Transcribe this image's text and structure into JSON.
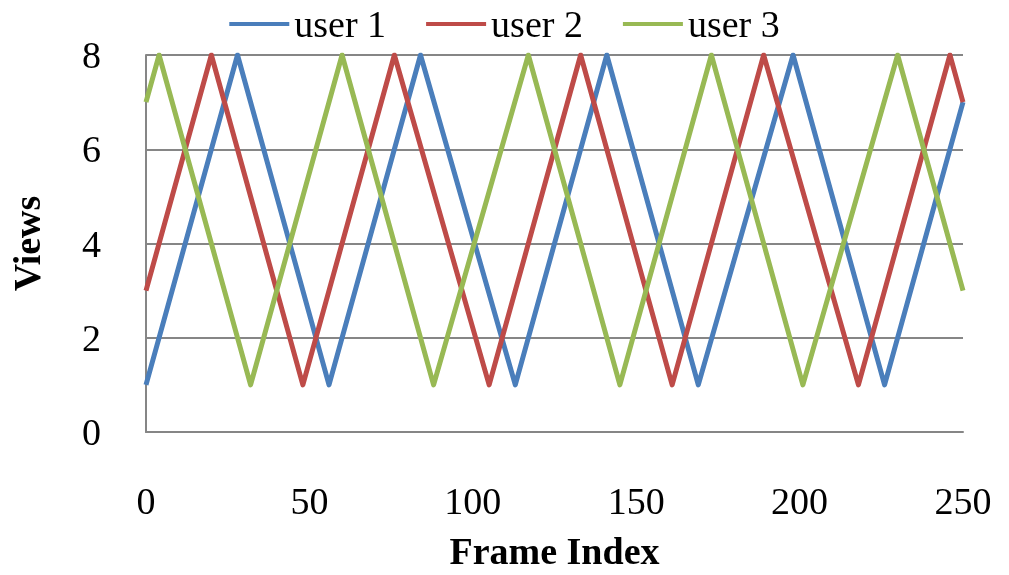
{
  "chart_data": {
    "type": "line",
    "xlabel": "Frame Index",
    "ylabel": "Views",
    "xlim": [
      0,
      250
    ],
    "xticks": [
      0,
      50,
      100,
      150,
      200,
      250
    ],
    "ylim": [
      0,
      8
    ],
    "yticks": [
      0,
      2,
      4,
      6,
      8
    ],
    "grid": "y",
    "legend": "top",
    "marker": "none",
    "line_style": "solid",
    "series": [
      {
        "name": "user 1",
        "color": "#4a7ebb",
        "x": [
          0,
          28,
          56,
          84,
          113,
          141,
          169,
          198,
          226,
          250
        ],
        "values": [
          1,
          8,
          1,
          8,
          1,
          8,
          1,
          8,
          1,
          7
        ]
      },
      {
        "name": "user 2",
        "color": "#be4b48",
        "x": [
          0,
          20,
          48,
          76,
          105,
          133,
          161,
          189,
          218,
          246,
          250
        ],
        "values": [
          3,
          8,
          1,
          8,
          1,
          8,
          1,
          8,
          1,
          8,
          7
        ]
      },
      {
        "name": "user 3",
        "color": "#98b954",
        "x": [
          0,
          4,
          32,
          60,
          88,
          117,
          145,
          173,
          201,
          230,
          250
        ],
        "values": [
          7,
          8,
          1,
          8,
          1,
          8,
          1,
          8,
          1,
          8,
          3
        ]
      }
    ]
  }
}
